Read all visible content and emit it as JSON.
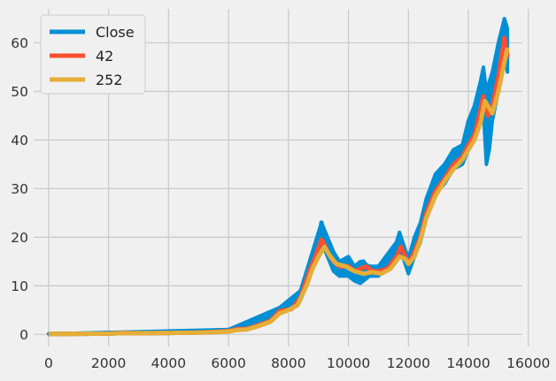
{
  "chart_data": {
    "type": "line",
    "title": "",
    "xlabel": "",
    "ylabel": "",
    "xlim": [
      -500,
      15800
    ],
    "ylim": [
      -2.5,
      67
    ],
    "xticks": [
      0,
      2000,
      4000,
      6000,
      8000,
      10000,
      12000,
      14000,
      16000
    ],
    "yticks": [
      0,
      10,
      20,
      30,
      40,
      50,
      60
    ],
    "grid": true,
    "legend": {
      "position": "top-left"
    },
    "series": [
      {
        "name": "Close",
        "color": "#008fd5",
        "points": [
          [
            0,
            0.1
          ],
          [
            1000,
            0.12
          ],
          [
            2000,
            0.15
          ],
          [
            2500,
            0.3
          ],
          [
            3000,
            0.25
          ],
          [
            4000,
            0.3
          ],
          [
            5000,
            0.4
          ],
          [
            5500,
            0.5
          ],
          [
            6000,
            0.8
          ],
          [
            6300,
            1.3
          ],
          [
            6600,
            1.1
          ],
          [
            7000,
            2
          ],
          [
            7400,
            3
          ],
          [
            7700,
            5
          ],
          [
            8100,
            5.3
          ],
          [
            8400,
            8
          ],
          [
            8700,
            14
          ],
          [
            8900,
            17
          ],
          [
            9000,
            19
          ],
          [
            9100,
            23
          ],
          [
            9200,
            19
          ],
          [
            9300,
            18
          ],
          [
            9500,
            15
          ],
          [
            9700,
            13
          ],
          [
            9900,
            14
          ],
          [
            10000,
            15
          ],
          [
            10200,
            12
          ],
          [
            10400,
            14
          ],
          [
            10500,
            15
          ],
          [
            10700,
            13
          ],
          [
            11000,
            13
          ],
          [
            11300,
            14
          ],
          [
            11600,
            18
          ],
          [
            11700,
            20
          ],
          [
            11800,
            17
          ],
          [
            12000,
            14
          ],
          [
            12200,
            18
          ],
          [
            12400,
            21
          ],
          [
            12600,
            26
          ],
          [
            12900,
            31
          ],
          [
            13200,
            33
          ],
          [
            13500,
            36
          ],
          [
            13800,
            37
          ],
          [
            14000,
            40
          ],
          [
            14200,
            42
          ],
          [
            14400,
            48
          ],
          [
            14500,
            53
          ],
          [
            14600,
            46
          ],
          [
            14700,
            44
          ],
          [
            14800,
            48
          ],
          [
            15000,
            55
          ],
          [
            15200,
            64
          ],
          [
            15300,
            57
          ]
        ],
        "band": [
          [
            0,
            0.1,
            0.1
          ],
          [
            6000,
            0.5,
            1
          ],
          [
            7700,
            4.5,
            5.5
          ],
          [
            8400,
            7,
            9
          ],
          [
            9000,
            17,
            21
          ],
          [
            9100,
            19,
            23
          ],
          [
            9500,
            13,
            17
          ],
          [
            9700,
            12,
            15
          ],
          [
            10000,
            12,
            16
          ],
          [
            10200,
            11,
            14
          ],
          [
            10400,
            10.5,
            15
          ],
          [
            10700,
            12,
            14
          ],
          [
            11000,
            12,
            14
          ],
          [
            11600,
            16,
            19
          ],
          [
            11700,
            18,
            21
          ],
          [
            12000,
            12.5,
            15.5
          ],
          [
            12200,
            16,
            20
          ],
          [
            12400,
            19,
            23
          ],
          [
            12600,
            24,
            28
          ],
          [
            12900,
            29,
            33
          ],
          [
            13200,
            31,
            35
          ],
          [
            13500,
            34,
            38
          ],
          [
            13800,
            35,
            39
          ],
          [
            14000,
            38,
            44
          ],
          [
            14200,
            40,
            47
          ],
          [
            14400,
            44,
            52
          ],
          [
            14500,
            46,
            55
          ],
          [
            14600,
            35,
            50
          ],
          [
            14700,
            38,
            52
          ],
          [
            14800,
            44,
            54
          ],
          [
            15000,
            50,
            60
          ],
          [
            15200,
            58,
            65
          ],
          [
            15300,
            54,
            63
          ]
        ]
      },
      {
        "name": "42",
        "color": "#fc4f30",
        "points": [
          [
            0,
            0.1
          ],
          [
            1000,
            0.12
          ],
          [
            2000,
            0.15
          ],
          [
            2500,
            0.3
          ],
          [
            3000,
            0.25
          ],
          [
            4000,
            0.3
          ],
          [
            5000,
            0.4
          ],
          [
            5500,
            0.5
          ],
          [
            6000,
            0.7
          ],
          [
            6300,
            1.1
          ],
          [
            6600,
            1.1
          ],
          [
            7000,
            1.9
          ],
          [
            7400,
            2.8
          ],
          [
            7700,
            4.8
          ],
          [
            8100,
            5.2
          ],
          [
            8400,
            7.5
          ],
          [
            8700,
            13
          ],
          [
            8900,
            16
          ],
          [
            9100,
            19.5
          ],
          [
            9200,
            18.5
          ],
          [
            9300,
            17
          ],
          [
            9500,
            15
          ],
          [
            9700,
            14
          ],
          [
            9900,
            14
          ],
          [
            10000,
            14
          ],
          [
            10200,
            13
          ],
          [
            10400,
            13.5
          ],
          [
            10600,
            14
          ],
          [
            10800,
            13
          ],
          [
            11000,
            13
          ],
          [
            11300,
            13.5
          ],
          [
            11600,
            16
          ],
          [
            11750,
            18
          ],
          [
            11900,
            16
          ],
          [
            12000,
            14.5
          ],
          [
            12200,
            17
          ],
          [
            12400,
            20
          ],
          [
            12600,
            25
          ],
          [
            12900,
            29.5
          ],
          [
            13200,
            32
          ],
          [
            13500,
            35
          ],
          [
            13800,
            36.5
          ],
          [
            14000,
            39
          ],
          [
            14200,
            41
          ],
          [
            14400,
            46
          ],
          [
            14500,
            49
          ],
          [
            14650,
            45
          ],
          [
            14800,
            47
          ],
          [
            15000,
            53
          ],
          [
            15200,
            61
          ],
          [
            15300,
            57
          ]
        ]
      },
      {
        "name": "252",
        "color": "#e5ae38",
        "points": [
          [
            0,
            0.1
          ],
          [
            1000,
            0.12
          ],
          [
            2000,
            0.15
          ],
          [
            2500,
            0.25
          ],
          [
            3000,
            0.25
          ],
          [
            4000,
            0.3
          ],
          [
            5000,
            0.35
          ],
          [
            5500,
            0.45
          ],
          [
            6000,
            0.6
          ],
          [
            6300,
            0.9
          ],
          [
            6600,
            1
          ],
          [
            7000,
            1.7
          ],
          [
            7400,
            2.6
          ],
          [
            7700,
            4.3
          ],
          [
            8000,
            5
          ],
          [
            8300,
            6
          ],
          [
            8600,
            10
          ],
          [
            8800,
            13.5
          ],
          [
            9000,
            16
          ],
          [
            9200,
            18
          ],
          [
            9400,
            16
          ],
          [
            9600,
            14.5
          ],
          [
            9900,
            14
          ],
          [
            10200,
            13
          ],
          [
            10500,
            12.5
          ],
          [
            10800,
            12.8
          ],
          [
            11100,
            12.5
          ],
          [
            11400,
            13.5
          ],
          [
            11700,
            16
          ],
          [
            11900,
            15.5
          ],
          [
            12000,
            14.5
          ],
          [
            12200,
            16
          ],
          [
            12400,
            19.5
          ],
          [
            12600,
            24
          ],
          [
            12900,
            28.5
          ],
          [
            13200,
            31.5
          ],
          [
            13500,
            34
          ],
          [
            13800,
            36
          ],
          [
            14000,
            38
          ],
          [
            14200,
            40
          ],
          [
            14400,
            43.5
          ],
          [
            14550,
            48
          ],
          [
            14800,
            45.5
          ],
          [
            15000,
            50
          ],
          [
            15200,
            56
          ],
          [
            15300,
            59
          ]
        ]
      }
    ]
  }
}
